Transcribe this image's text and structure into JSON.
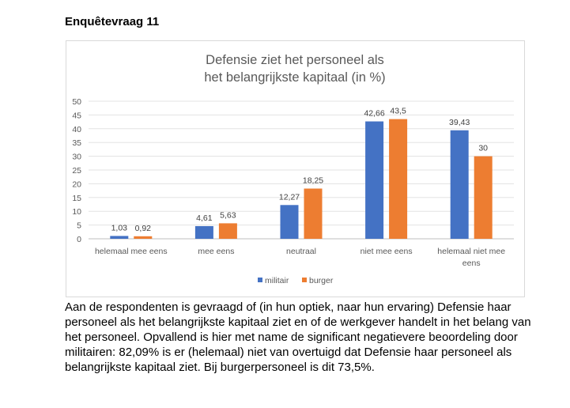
{
  "heading": "Enquêtevraag 11",
  "chart_data": {
    "type": "bar",
    "title_lines": [
      "Defensie ziet het personeel als",
      "het belangrijkste kapitaal (in %)"
    ],
    "categories": [
      [
        "helemaal mee eens"
      ],
      [
        "mee eens"
      ],
      [
        "neutraal"
      ],
      [
        "niet mee eens"
      ],
      [
        "helemaal niet mee",
        "eens"
      ]
    ],
    "series": [
      {
        "name": "militair",
        "color": "#4472c4",
        "values": [
          1.03,
          4.61,
          12.27,
          42.66,
          39.43
        ],
        "labels": [
          "1,03",
          "4,61",
          "12,27",
          "42,66",
          "39,43"
        ]
      },
      {
        "name": "burger",
        "color": "#ed7d31",
        "values": [
          0.92,
          5.63,
          18.25,
          43.5,
          30
        ],
        "labels": [
          "0,92",
          "5,63",
          "18,25",
          "43,5",
          "30"
        ]
      }
    ],
    "ylim": [
      0,
      50
    ],
    "yticks": [
      "0",
      "5",
      "10",
      "15",
      "20",
      "25",
      "30",
      "35",
      "40",
      "45",
      "50"
    ],
    "grid": true,
    "legend_position": "bottom"
  },
  "body_text": "Aan de respondenten is gevraagd of (in hun optiek, naar hun ervaring) Defensie haar personeel als het belangrijkste kapitaal ziet en of de werkgever handelt in het belang van het personeel. Opvallend is hier met name de significant negatievere beoordeling door militairen: 82,09% is er (helemaal) niet van overtuigd dat Defensie haar personeel als belangrijkste kapitaal ziet. Bij burgerpersoneel is dit 73,5%."
}
